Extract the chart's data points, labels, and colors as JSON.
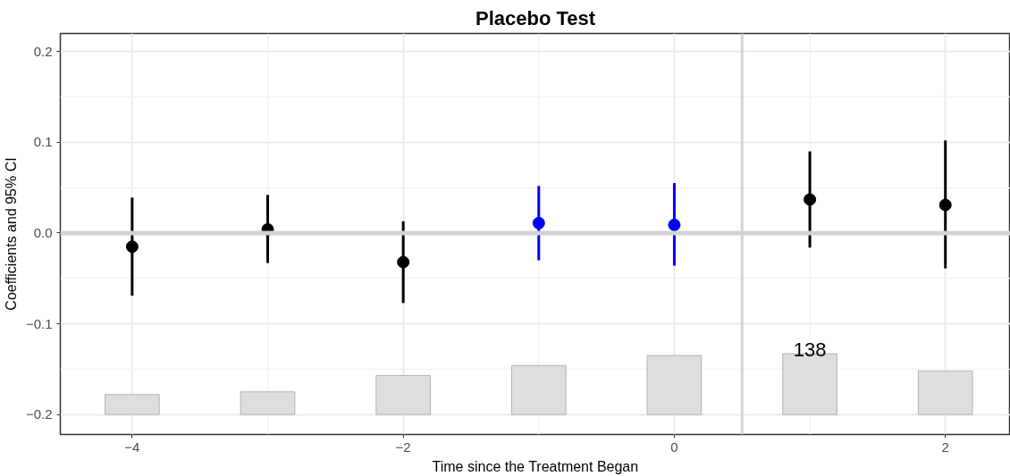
{
  "chart_data": {
    "type": "scatter",
    "title": "Placebo Test",
    "xlabel": "Time since the Treatment Began",
    "ylabel": "Coefficients and 95% CI",
    "x": [
      -4,
      -3,
      -2,
      -1,
      0,
      1,
      2
    ],
    "series": [
      {
        "type": "bar",
        "color": "#dedede",
        "base": [
          -0.2,
          -0.2,
          -0.2,
          -0.2,
          -0.2,
          -0.2,
          -0.2
        ],
        "values": [
          0.022,
          0.025,
          0.043,
          0.054,
          0.065,
          0.067,
          0.048
        ]
      },
      {
        "colors": [
          "#000000",
          "#000000",
          "#000000",
          "#0000ff",
          "#0000ff",
          "#000000",
          "#000000"
        ],
        "values": [
          -0.015,
          0.004,
          -0.032,
          0.011,
          0.009,
          0.037,
          0.031
        ],
        "errors": [
          [
            -0.069,
            0.039
          ],
          [
            -0.033,
            0.042
          ],
          [
            -0.077,
            0.013
          ],
          [
            -0.03,
            0.052
          ],
          [
            -0.036,
            0.055
          ],
          [
            -0.016,
            0.09
          ],
          [
            -0.039,
            0.102
          ]
        ]
      }
    ],
    "xlim": [
      -4.53,
      2.48
    ],
    "ylim": [
      -0.222,
      0.22
    ],
    "xticks": [
      {
        "value": -4,
        "label": "−4"
      },
      {
        "value": -2,
        "label": "−2"
      },
      0,
      2
    ],
    "yticks": [
      {
        "value": -0.2,
        "label": "−0.2"
      },
      {
        "value": -0.1,
        "label": "−0.1"
      },
      {
        "value": 0,
        "label": "0.0"
      },
      0.1,
      0.2
    ],
    "ref_lines": [
      {
        "axis": "y",
        "value": 0,
        "color": "#d3d3d3"
      },
      {
        "axis": "x",
        "value": 0.5,
        "color": "#d3d3d3"
      }
    ],
    "annotations": [
      {
        "text": "138",
        "x": 1,
        "y": -0.134
      }
    ],
    "grid": true,
    "marker": "circle"
  }
}
